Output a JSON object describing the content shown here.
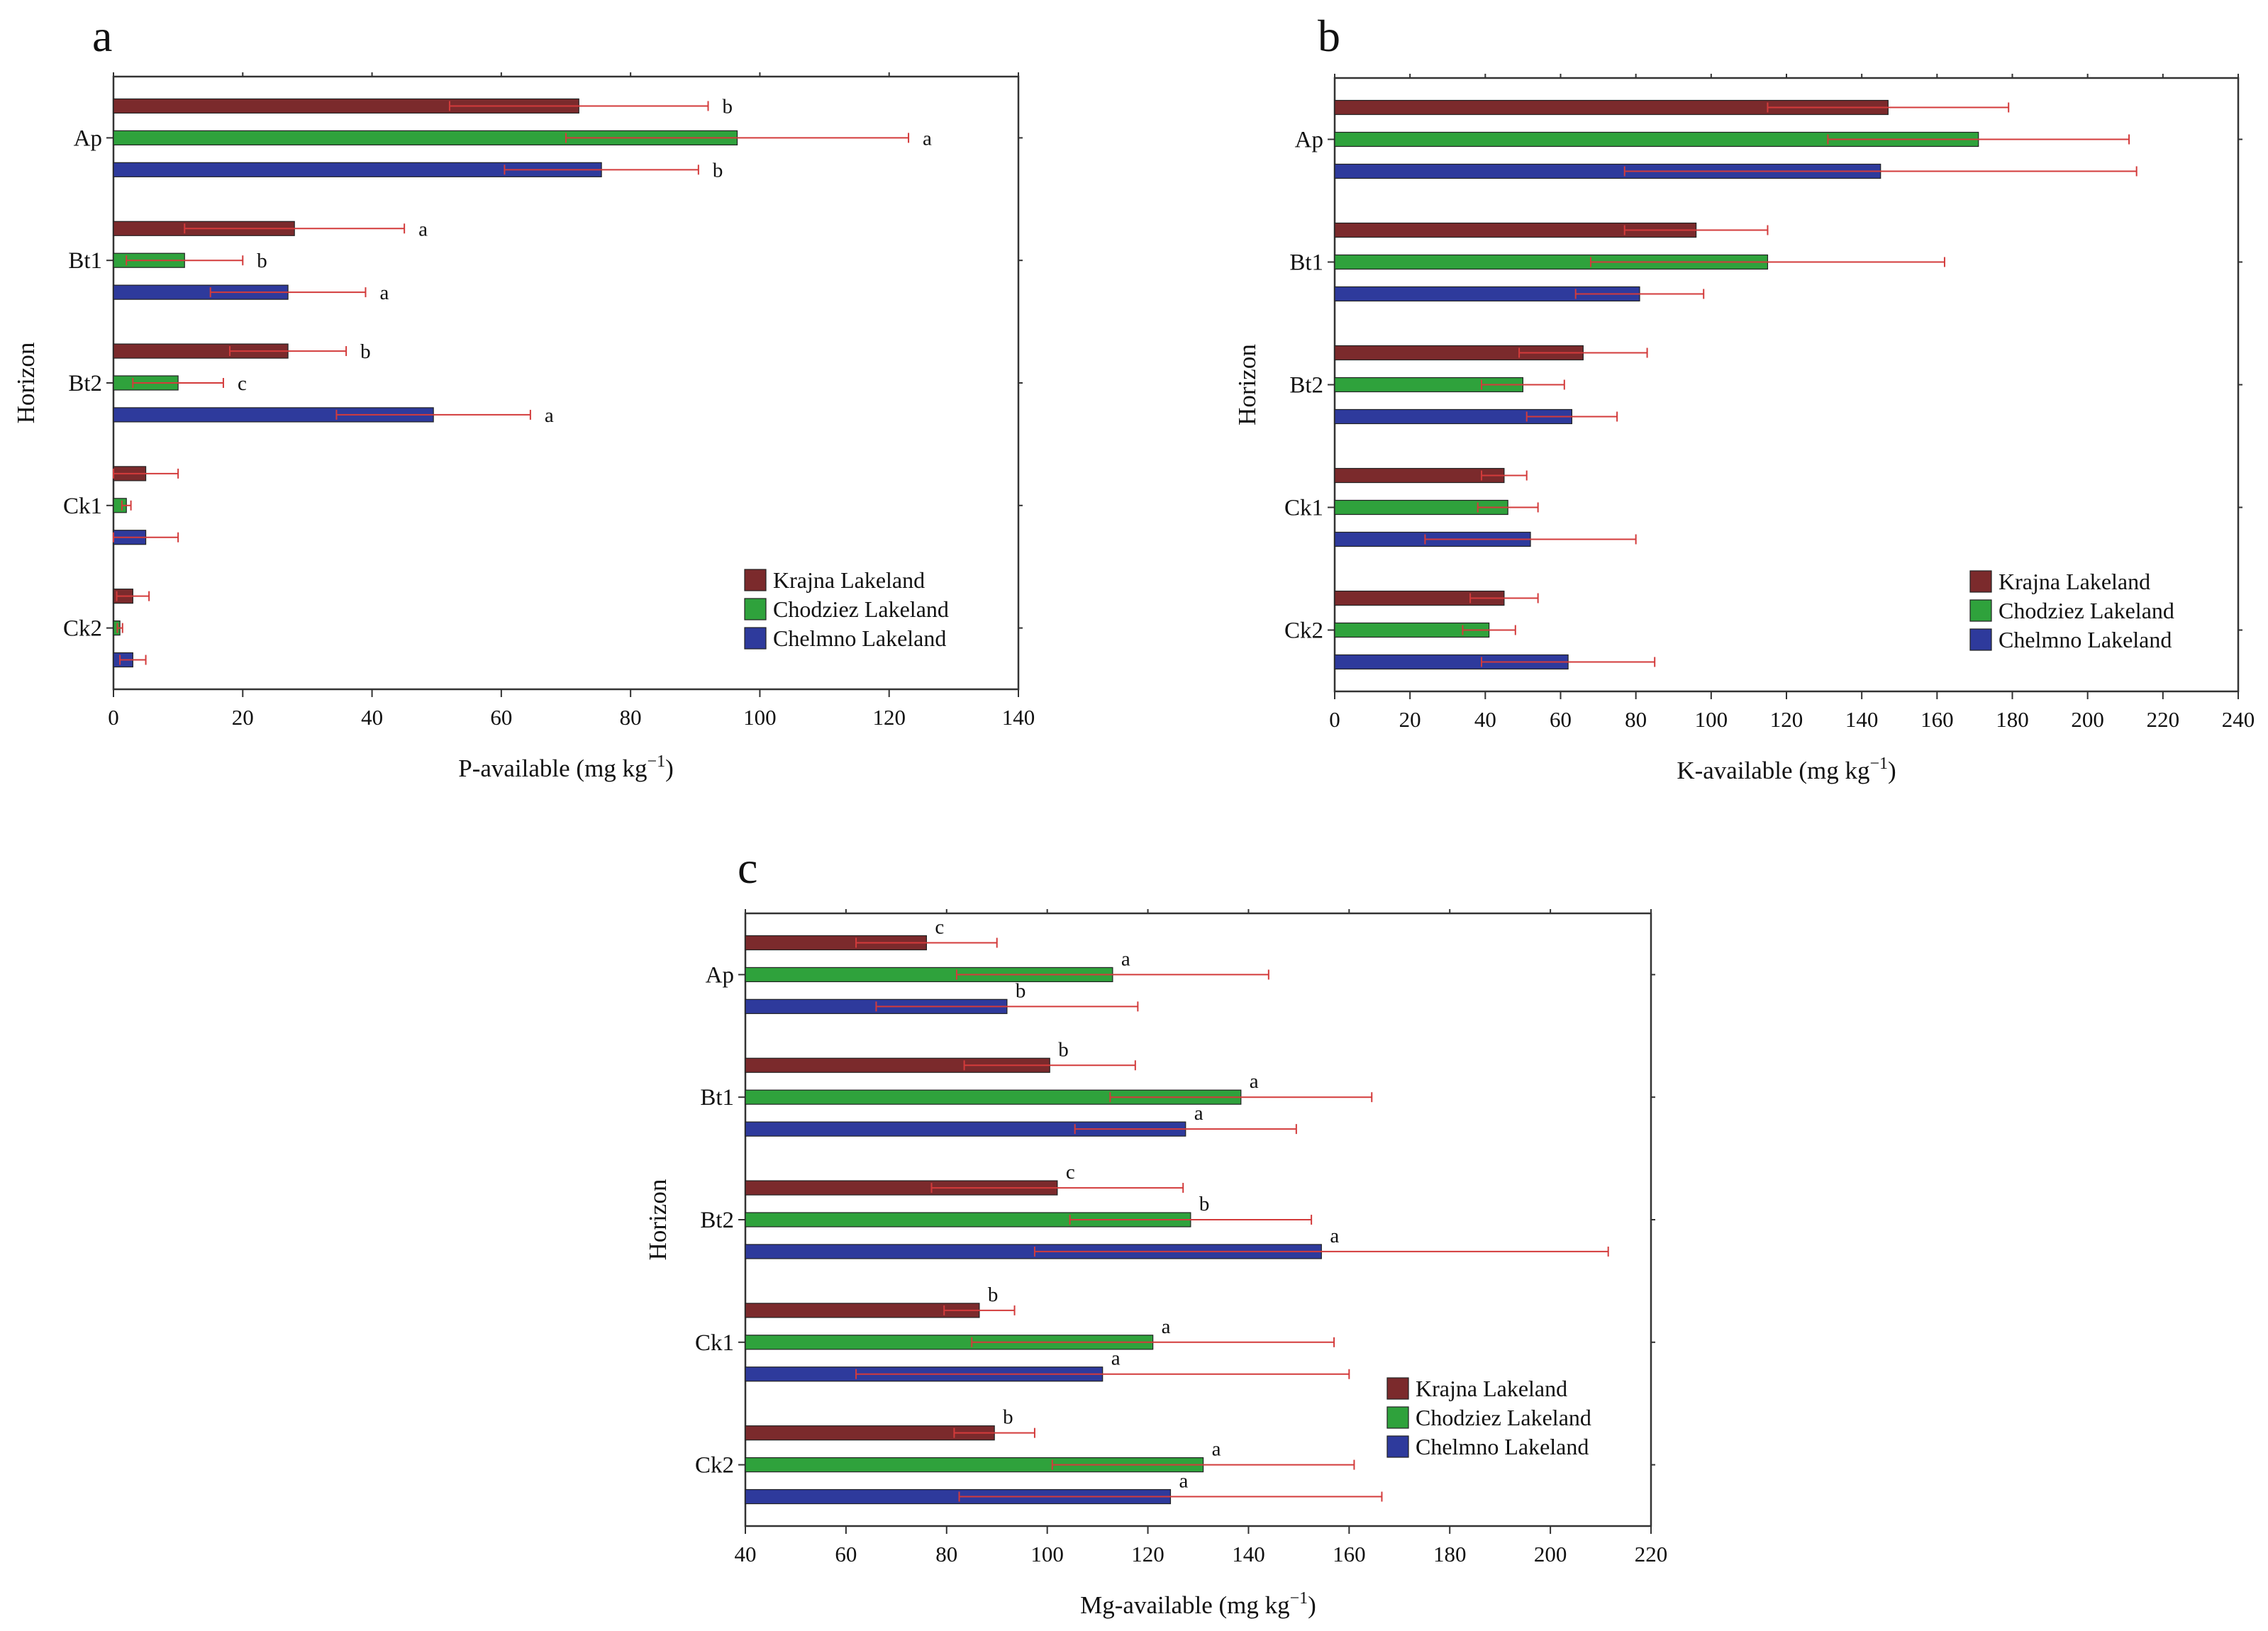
{
  "figure": {
    "legend_entries": [
      "Krajna Lakeland",
      "Chodziez Lakeland",
      "Chelmno Lakeland"
    ],
    "colors": {
      "Krajna Lakeland": "#7b2a2c",
      "Chodziez Lakeland": "#2fa23c",
      "Chelmno Lakeland": "#2e3a9c",
      "error_bar": "#d33b3b"
    }
  },
  "chart_data": [
    {
      "type": "bar",
      "orientation": "horizontal",
      "panel": "a",
      "title": "",
      "ylabel": "Horizon",
      "xlabel": "P-available (mg kg",
      "xlabel_sup": "−1",
      "xlabel_close": ")",
      "xlim": [
        0,
        140
      ],
      "xticks": [
        0,
        20,
        40,
        60,
        80,
        100,
        120,
        140
      ],
      "categories": [
        "Ap",
        "Bt1",
        "Bt2",
        "Ck1",
        "Ck2"
      ],
      "legend_position": "bottom-right",
      "series": [
        {
          "name": "Krajna Lakeland",
          "values": [
            72,
            28,
            27,
            5,
            3
          ],
          "errors": [
            20,
            17,
            9,
            5,
            2.5
          ],
          "letters": [
            "b",
            "a",
            "b",
            "",
            ""
          ]
        },
        {
          "name": "Chodziez Lakeland",
          "values": [
            96.5,
            11,
            10,
            2,
            1
          ],
          "errors": [
            26.5,
            9,
            7,
            0.7,
            0.4
          ],
          "letters": [
            "a",
            "b",
            "c",
            "",
            ""
          ]
        },
        {
          "name": "Chelmno Lakeland",
          "values": [
            75.5,
            27,
            49.5,
            5,
            3
          ],
          "errors": [
            15,
            12,
            15,
            5,
            2
          ],
          "letters": [
            "b",
            "a",
            "a",
            "",
            ""
          ]
        }
      ]
    },
    {
      "type": "bar",
      "orientation": "horizontal",
      "panel": "b",
      "title": "",
      "ylabel": "Horizon",
      "xlabel": "K-available (mg kg",
      "xlabel_sup": "−1",
      "xlabel_close": ")",
      "xlim": [
        0,
        240
      ],
      "xticks": [
        0,
        20,
        40,
        60,
        80,
        100,
        120,
        140,
        160,
        180,
        200,
        220,
        240
      ],
      "categories": [
        "Ap",
        "Bt1",
        "Bt2",
        "Ck1",
        "Ck2"
      ],
      "legend_position": "bottom-right",
      "series": [
        {
          "name": "Krajna Lakeland",
          "values": [
            147,
            96,
            66,
            45,
            45
          ],
          "errors": [
            32,
            19,
            17,
            6,
            9
          ],
          "letters": [
            "",
            "",
            "",
            "",
            ""
          ]
        },
        {
          "name": "Chodziez Lakeland",
          "values": [
            171,
            115,
            50,
            46,
            41
          ],
          "errors": [
            40,
            47,
            11,
            8,
            7
          ],
          "letters": [
            "",
            "",
            "",
            "",
            ""
          ]
        },
        {
          "name": "Chelmno Lakeland",
          "values": [
            145,
            81,
            63,
            52,
            62
          ],
          "errors": [
            68,
            17,
            12,
            28,
            23
          ],
          "letters": [
            "",
            "",
            "",
            "",
            ""
          ]
        }
      ]
    },
    {
      "type": "bar",
      "orientation": "horizontal",
      "panel": "c",
      "title": "",
      "ylabel": "Horizon",
      "xlabel": "Mg-available (mg kg",
      "xlabel_sup": "−1",
      "xlabel_close": ")",
      "xlim": [
        40,
        220
      ],
      "xticks": [
        40,
        60,
        80,
        100,
        120,
        140,
        160,
        180,
        200,
        220
      ],
      "categories": [
        "Ap",
        "Bt1",
        "Bt2",
        "Ck1",
        "Ck2"
      ],
      "legend_position": "bottom-right",
      "series": [
        {
          "name": "Krajna Lakeland",
          "values": [
            76,
            100.5,
            102,
            86.5,
            89.5
          ],
          "errors": [
            14,
            17,
            25,
            7,
            8
          ],
          "letters": [
            "c",
            "b",
            "c",
            "b",
            "b"
          ]
        },
        {
          "name": "Chodziez Lakeland",
          "values": [
            113,
            138.5,
            128.5,
            121,
            131
          ],
          "errors": [
            31,
            26,
            24,
            36,
            30
          ],
          "letters": [
            "a",
            "a",
            "b",
            "a",
            "a"
          ]
        },
        {
          "name": "Chelmno Lakeland",
          "values": [
            92,
            127.5,
            154.5,
            111,
            124.5
          ],
          "errors": [
            26,
            22,
            57,
            49,
            42
          ],
          "letters": [
            "b",
            "a",
            "a",
            "a",
            "a"
          ]
        }
      ]
    }
  ]
}
